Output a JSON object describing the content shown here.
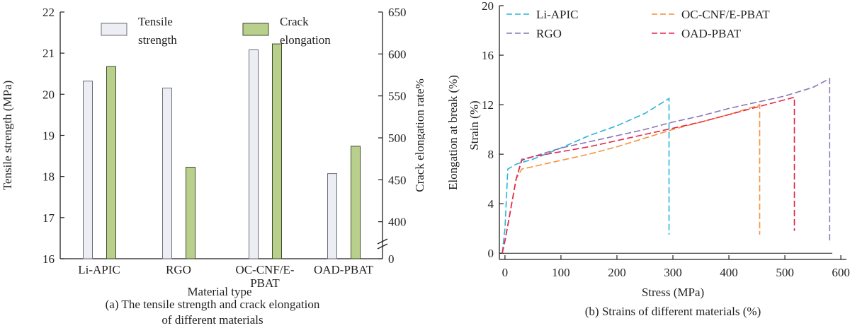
{
  "chart_data": [
    {
      "type": "bar",
      "caption_line1": "(a) The tensile strength and crack elongation",
      "caption_line2": "of different materials",
      "xlabel": "Material type",
      "ylabel": "Tensile strength (MPa)",
      "y2label": "Crack elongation rate%",
      "categories": [
        {
          "line1": "Li-APIC",
          "line2": ""
        },
        {
          "line1": "RGO",
          "line2": ""
        },
        {
          "line1": "OC-CNF/E-",
          "line2": "PBAT"
        },
        {
          "line1": "OAD-PBAT",
          "line2": ""
        }
      ],
      "ylim": [
        16,
        22
      ],
      "y_ticks": [
        "16",
        "17",
        "18",
        "19",
        "20",
        "21",
        "22"
      ],
      "y2_ticks": [
        "0",
        "400",
        "450",
        "500",
        "550",
        "600",
        "650"
      ],
      "y2_scale_note": "axis break between 0 and 400; 400-650 maps to y 16.9-22",
      "series": [
        {
          "name_line1": "Tensile",
          "name_line2": "strength",
          "axis": "left",
          "color": "#eceef3",
          "stroke": "#6b6e7a",
          "values": [
            20.32,
            20.15,
            21.08,
            18.07
          ]
        },
        {
          "name_line1": "Crack",
          "name_line2": "elongation",
          "axis": "right",
          "color": "#b9d08c",
          "stroke": "#3f4a2a",
          "values": [
            585,
            465,
            612,
            490
          ]
        }
      ],
      "legend": "top"
    },
    {
      "type": "line",
      "caption": "(b) Strains of different materials (%)",
      "xlabel": "Stress (MPa)",
      "ylabel": "Elongation at break (%)",
      "ylabel_overlay": "Strain (%)",
      "xlim": [
        -10,
        610
      ],
      "ylim": [
        -0.5,
        20
      ],
      "x_ticks": [
        "0",
        "100",
        "200",
        "300",
        "400",
        "500",
        "600"
      ],
      "y_ticks": [
        "0",
        "4",
        "8",
        "12",
        "16",
        "20"
      ],
      "legend": "top",
      "series": [
        {
          "name": "Li-APIC",
          "color": "#29b5d9",
          "x": [
            -5,
            0,
            5,
            20,
            50,
            100,
            150,
            200,
            250,
            293,
            293
          ],
          "y": [
            0,
            2,
            6.8,
            7.2,
            7.6,
            8.5,
            9.5,
            10.3,
            11.3,
            12.5,
            1.5
          ]
        },
        {
          "name": "RGO",
          "color": "#8a77b5",
          "x": [
            -5,
            0,
            10,
            20,
            30,
            50,
            100,
            150,
            200,
            250,
            300,
            350,
            400,
            450,
            500,
            550,
            580,
            580
          ],
          "y": [
            0,
            1,
            3.5,
            6,
            7.6,
            7.8,
            8.5,
            9.0,
            9.5,
            10.0,
            10.6,
            11.1,
            11.7,
            12.2,
            12.7,
            13.4,
            14.1,
            0.8
          ]
        },
        {
          "name": "OC-CNF/E-PBAT",
          "color": "#f2913d",
          "x": [
            -5,
            0,
            10,
            20,
            30,
            50,
            100,
            150,
            200,
            250,
            300,
            350,
            400,
            450,
            455,
            455
          ],
          "y": [
            0,
            1,
            3.5,
            6,
            6.8,
            7.0,
            7.5,
            8.0,
            8.6,
            9.3,
            10.0,
            10.6,
            11.2,
            11.9,
            12.0,
            1.5
          ]
        },
        {
          "name": "OAD-PBAT",
          "color": "#e5254b",
          "x": [
            -5,
            0,
            10,
            20,
            30,
            50,
            100,
            150,
            200,
            250,
            300,
            350,
            400,
            450,
            500,
            517,
            517
          ],
          "y": [
            0,
            1,
            3.5,
            6,
            7.5,
            7.8,
            8.2,
            8.6,
            9.1,
            9.6,
            10.1,
            10.6,
            11.2,
            11.8,
            12.4,
            12.6,
            1.8
          ]
        }
      ]
    }
  ]
}
